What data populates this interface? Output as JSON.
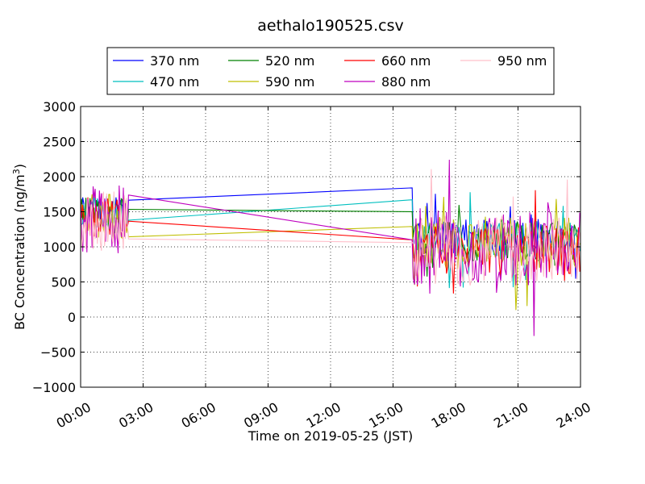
{
  "chart_data": {
    "type": "line",
    "title": "aethalo190525.csv",
    "xlabel": "Time on 2019-05-25 (JST)",
    "ylabel": "BC Concentration (ng/m³)",
    "ylabel_main": "BC Concentration (ng/m",
    "ylabel_sup": "3",
    "ylabel_close": ")",
    "xlim": [
      "00:00",
      "24:00"
    ],
    "ylim": [
      -1000,
      3000
    ],
    "xticks": [
      "00:00",
      "03:00",
      "06:00",
      "09:00",
      "12:00",
      "15:00",
      "18:00",
      "21:00",
      "24:00"
    ],
    "yticks": [
      -1000,
      -500,
      0,
      500,
      1000,
      1500,
      2000,
      2500,
      3000
    ],
    "grid": true,
    "legend_position": "top-center",
    "series": [
      {
        "name": "370 nm",
        "color": "#0000ff",
        "gap": {
          "from": "02:20",
          "to": "15:55",
          "y_from": 1520,
          "y_to": 1840
        },
        "base_start": 1500,
        "base_end": 1150,
        "amp": 250,
        "seed": 1
      },
      {
        "name": "470 nm",
        "color": "#00bfbf",
        "gap": {
          "from": "02:20",
          "to": "15:55",
          "y_from": 1500,
          "y_to": 1670
        },
        "base_start": 1500,
        "base_end": 1100,
        "amp": 280,
        "seed": 2
      },
      {
        "name": "520 nm",
        "color": "#008000",
        "gap": {
          "from": "02:20",
          "to": "15:55",
          "y_from": 1500,
          "y_to": 1500
        },
        "base_start": 1450,
        "base_end": 1100,
        "amp": 300,
        "seed": 3
      },
      {
        "name": "590 nm",
        "color": "#bfbf00",
        "gap": {
          "from": "02:20",
          "to": "15:55",
          "y_from": 1480,
          "y_to": 1290
        },
        "base_start": 1450,
        "base_end": 1050,
        "amp": 380,
        "seed": 4
      },
      {
        "name": "660 nm",
        "color": "#ff0000",
        "gap": {
          "from": "02:20",
          "to": "15:55",
          "y_from": 1480,
          "y_to": 1100
        },
        "base_start": 1400,
        "base_end": 950,
        "amp": 350,
        "seed": 5
      },
      {
        "name": "880 nm",
        "color": "#bf00bf",
        "gap": {
          "from": "02:20",
          "to": "15:55",
          "y_from": 1800,
          "y_to": 1100
        },
        "base_start": 1400,
        "base_end": 1000,
        "amp": 550,
        "seed": 6
      },
      {
        "name": "950 nm",
        "color": "#ffc0cb",
        "gap": {
          "from": "02:20",
          "to": "15:55",
          "y_from": 1420,
          "y_to": 1060
        },
        "base_start": 1350,
        "base_end": 950,
        "amp": 500,
        "seed": 7
      }
    ]
  }
}
